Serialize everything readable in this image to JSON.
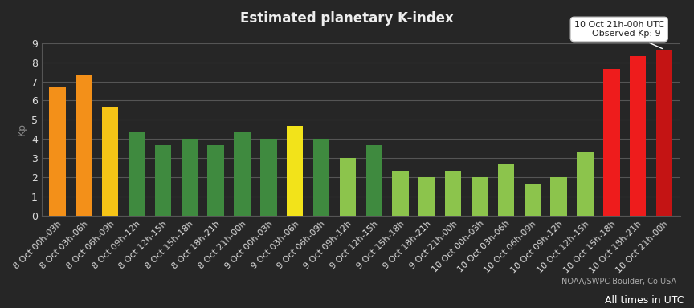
{
  "chart_data": {
    "type": "bar",
    "title": "Estimated planetary K-index",
    "y_label": "Kp",
    "categories": [
      "8 Oct 00h-03h",
      "8 Oct 03h-06h",
      "8 Oct 06h-09h",
      "8 Oct 09h-12h",
      "8 Oct 12h-15h",
      "8 Oct 15h-18h",
      "8 Oct 18h-21h",
      "8 Oct 21h-00h",
      "9 Oct 00h-03h",
      "9 Oct 03h-06h",
      "9 Oct 06h-09h",
      "9 Oct 09h-12h",
      "9 Oct 12h-15h",
      "9 Oct 15h-18h",
      "9 Oct 18h-21h",
      "9 Oct 21h-00h",
      "10 Oct 00h-03h",
      "10 Oct 03h-06h",
      "10 Oct 06h-09h",
      "10 Oct 09h-12h",
      "10 Oct 12h-15h",
      "10 Oct 15h-18h",
      "10 Oct 18h-21h",
      "10 Oct 21h-00h"
    ],
    "values": [
      6.67,
      7.33,
      5.67,
      4.33,
      3.67,
      4.0,
      3.67,
      4.33,
      4.0,
      4.67,
      4.0,
      3.0,
      3.67,
      2.33,
      2.0,
      2.33,
      2.0,
      2.67,
      1.67,
      2.0,
      3.33,
      7.67,
      8.33,
      8.67
    ],
    "colors": [
      "#f39019",
      "#f39019",
      "#f5c416",
      "#3f8a3f",
      "#3f8a3f",
      "#3f8a3f",
      "#3f8a3f",
      "#3f8a3f",
      "#3f8a3f",
      "#f2e31a",
      "#3f8a3f",
      "#8cc44c",
      "#3f8a3f",
      "#8cc44c",
      "#8cc44c",
      "#8cc44c",
      "#8cc44c",
      "#8cc44c",
      "#8cc44c",
      "#8cc44c",
      "#8cc44c",
      "#ee1c1c",
      "#ee1c1c",
      "#c41414"
    ],
    "ylim": [
      0,
      9
    ],
    "yticks": [
      0,
      1,
      2,
      3,
      4,
      5,
      6,
      7,
      8,
      9
    ],
    "grid": true,
    "annotations": [
      "10 Oct 21h-00h UTC\nObserved Kp: 9-"
    ],
    "source": "NOAA/SWPC Boulder, Co USA",
    "note": "All times in UTC"
  }
}
